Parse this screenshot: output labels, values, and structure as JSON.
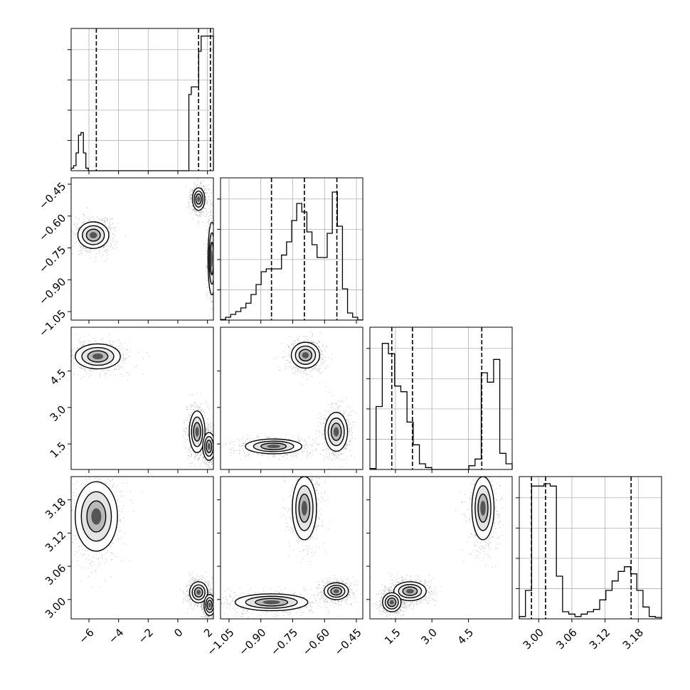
{
  "chart_data": {
    "type": "corner",
    "grid": true,
    "quantile_lines": "dashed",
    "parameters": [
      {
        "range": [
          -7.2,
          2.4
        ],
        "ticks": [
          -6,
          -4,
          -2,
          0,
          2
        ],
        "tick_labels": [
          "−6",
          "−4",
          "−2",
          "0",
          "2"
        ]
      },
      {
        "range": [
          -1.09,
          -0.42
        ],
        "ticks": [
          -1.05,
          -0.9,
          -0.75,
          -0.6,
          -0.45
        ],
        "tick_labels": [
          "−1.05",
          "−0.90",
          "−0.75",
          "−0.60",
          "−0.45"
        ]
      },
      {
        "range": [
          0.45,
          6.3
        ],
        "ticks": [
          1.5,
          3.0,
          4.5
        ],
        "tick_labels": [
          "1.5",
          "3.0",
          "4.5"
        ]
      },
      {
        "range": [
          2.965,
          3.222
        ],
        "ticks": [
          3.0,
          3.06,
          3.12,
          3.18
        ],
        "tick_labels": [
          "3.00",
          "3.06",
          "3.12",
          "3.18"
        ]
      }
    ],
    "histograms": [
      {
        "param": 0,
        "bins": [
          -7.2,
          2.4
        ],
        "heights": [
          1,
          2,
          7,
          14,
          15,
          7,
          1,
          0,
          0,
          0,
          0,
          0,
          0,
          0,
          0,
          0,
          0,
          0,
          0,
          0,
          0,
          0,
          0,
          0,
          0,
          0,
          0,
          0,
          0,
          0,
          0,
          0,
          0,
          0,
          0,
          0,
          0,
          0,
          0,
          0,
          0,
          0,
          0,
          0,
          0,
          0,
          0,
          0,
          30,
          33,
          33,
          33,
          47,
          53,
          53,
          53,
          53,
          53
        ],
        "quantiles": [
          -5.5,
          1.4,
          2.2
        ],
        "ymax": 56
      },
      {
        "param": 1,
        "bins": [
          -1.09,
          -0.42
        ],
        "heights": [
          0.3,
          1.4,
          2.8,
          4.2,
          6,
          8.3,
          12.6,
          17.5,
          23.8,
          25.2,
          25.2,
          25.2,
          32,
          38.5,
          49,
          57.4,
          53.2,
          43.4,
          37.1,
          30.8,
          30.8,
          42.7,
          63,
          46.2,
          15.4,
          3.5,
          1.4,
          0.1
        ],
        "quantiles": [
          -0.85,
          -0.695,
          -0.542
        ],
        "ymax": 70
      },
      {
        "param": 2,
        "bins": [
          0.45,
          6.3
        ],
        "heights": [
          0.5,
          33.2,
          66.5,
          61,
          44,
          41,
          25,
          13,
          3,
          1,
          0,
          0,
          0,
          0,
          0,
          0,
          2,
          5.5,
          51,
          46,
          58,
          8.5,
          3
        ],
        "quantiles": [
          1.35,
          2.2,
          5.05
        ],
        "ymax": 75
      },
      {
        "param": 3,
        "bins": [
          2.965,
          3.222
        ],
        "heights": [
          0.5,
          6,
          28,
          28,
          28.5,
          28,
          9,
          1.5,
          1,
          0.5,
          1,
          1.5,
          2,
          4,
          6,
          8,
          10,
          11,
          9.5,
          6,
          2.5,
          0.5,
          0.3
        ],
        "quantiles": [
          2.987,
          3.0125,
          3.167
        ],
        "ymax": 30
      }
    ],
    "pairs": [
      {
        "x": 0,
        "y": 1,
        "clusters": [
          {
            "cx": -5.7,
            "cy": -0.69,
            "sx": 0.55,
            "sy": 0.033
          },
          {
            "cx": 1.4,
            "cy": -0.52,
            "sx": 0.22,
            "sy": 0.028
          },
          {
            "cx": 2.3,
            "cy": -0.8,
            "sx": 0.14,
            "sy": 0.09
          }
        ]
      },
      {
        "x": 0,
        "y": 2,
        "clusters": [
          {
            "cx": -5.4,
            "cy": 5.1,
            "sx": 0.8,
            "sy": 0.27
          },
          {
            "cx": 1.3,
            "cy": 2.0,
            "sx": 0.28,
            "sy": 0.45
          },
          {
            "cx": 2.1,
            "cy": 1.4,
            "sx": 0.22,
            "sy": 0.3
          }
        ]
      },
      {
        "x": 0,
        "y": 3,
        "clusters": [
          {
            "cx": -5.5,
            "cy": 3.15,
            "sx": 0.75,
            "sy": 0.033
          },
          {
            "cx": 1.4,
            "cy": 3.013,
            "sx": 0.32,
            "sy": 0.01
          },
          {
            "cx": 2.15,
            "cy": 2.99,
            "sx": 0.2,
            "sy": 0.01
          }
        ]
      },
      {
        "x": 1,
        "y": 2,
        "clusters": [
          {
            "cx": -0.69,
            "cy": 5.15,
            "sx": 0.035,
            "sy": 0.28
          },
          {
            "cx": -0.545,
            "cy": 2.0,
            "sx": 0.028,
            "sy": 0.42
          },
          {
            "cx": -0.84,
            "cy": 1.4,
            "sx": 0.07,
            "sy": 0.16
          }
        ]
      },
      {
        "x": 1,
        "y": 3,
        "clusters": [
          {
            "cx": -0.695,
            "cy": 3.165,
            "sx": 0.03,
            "sy": 0.03
          },
          {
            "cx": -0.545,
            "cy": 3.015,
            "sx": 0.03,
            "sy": 0.008
          },
          {
            "cx": -0.85,
            "cy": 2.995,
            "sx": 0.09,
            "sy": 0.008
          }
        ]
      },
      {
        "x": 2,
        "y": 3,
        "clusters": [
          {
            "cx": 5.1,
            "cy": 3.165,
            "sx": 0.24,
            "sy": 0.03
          },
          {
            "cx": 2.1,
            "cy": 3.015,
            "sx": 0.35,
            "sy": 0.009
          },
          {
            "cx": 1.35,
            "cy": 2.995,
            "sx": 0.2,
            "sy": 0.009
          }
        ]
      }
    ]
  }
}
